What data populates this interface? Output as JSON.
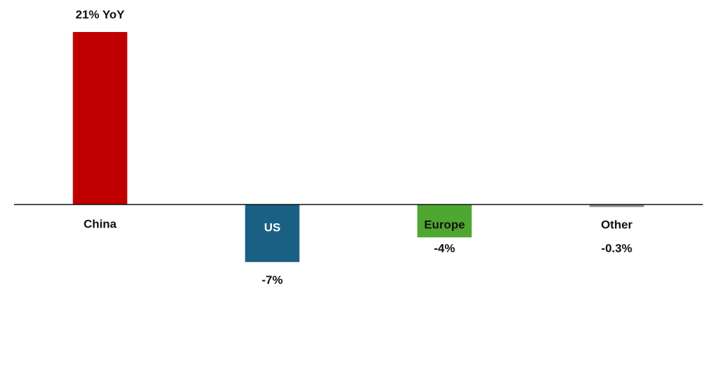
{
  "chart_data": {
    "type": "bar",
    "categories": [
      "China",
      "US",
      "Europe",
      "Other"
    ],
    "values": [
      21,
      -7,
      -4,
      -0.3
    ],
    "value_labels": [
      "21% YoY",
      "-7%",
      "-4%",
      "-0.3%"
    ],
    "colors": [
      "#c00000",
      "#1a5f84",
      "#4ea72e",
      "#8c8c8c"
    ]
  }
}
